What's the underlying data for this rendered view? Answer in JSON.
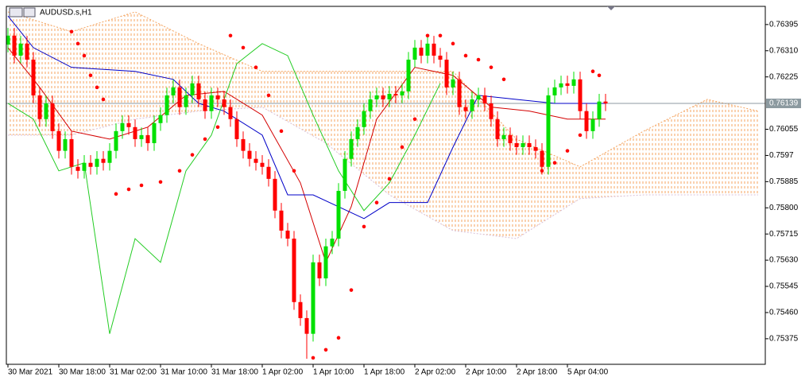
{
  "chart_data": {
    "type": "candlestick",
    "title": "AUDUSD.s,H1",
    "categories": [
      "30 Mar 2021",
      null,
      null,
      null,
      null,
      null,
      null,
      null,
      "30 Mar 18:00",
      null,
      null,
      null,
      null,
      null,
      null,
      null,
      "31 Mar 02:00",
      null,
      null,
      null,
      null,
      null,
      null,
      null,
      "31 Mar 10:00",
      null,
      null,
      null,
      null,
      null,
      null,
      null,
      "31 Mar 18:00",
      null,
      null,
      null,
      null,
      null,
      null,
      null,
      "1 Apr 02:00",
      null,
      null,
      null,
      null,
      null,
      null,
      null,
      "1 Apr 10:00",
      null,
      null,
      null,
      null,
      null,
      null,
      null,
      "1 Apr 18:00",
      null,
      null,
      null,
      null,
      null,
      null,
      null,
      "2 Apr 02:00",
      null,
      null,
      null,
      null,
      null,
      null,
      null,
      "2 Apr 10:00",
      null,
      null,
      null,
      null,
      null,
      null,
      null,
      "2 Apr 18:00",
      null,
      null,
      null,
      null,
      null,
      null,
      null,
      "5 Apr 04:00",
      null,
      null,
      null,
      null,
      null,
      null
    ],
    "open": [
      0.7633,
      0.76359,
      0.76294,
      0.76333,
      0.76281,
      0.76165,
      0.76088,
      0.76139,
      0.76049,
      0.75985,
      0.76023,
      0.75933,
      0.7592,
      0.75946,
      0.75933,
      0.75959,
      0.75946,
      0.75985,
      0.76049,
      0.76075,
      0.76062,
      0.76023,
      0.76036,
      0.7601,
      0.76075,
      0.76101,
      0.76165,
      0.76191,
      0.76127,
      0.76165,
      0.76204,
      0.76152,
      0.76114,
      0.76165,
      0.76152,
      0.76127,
      0.76088,
      0.76023,
      0.75985,
      0.75959,
      0.75946,
      0.75933,
      0.75894,
      0.75791,
      0.75726,
      0.757,
      0.75494,
      0.75442,
      0.75391,
      0.75623,
      0.75571,
      0.75675,
      0.757,
      0.75855,
      0.75959,
      0.76023,
      0.76062,
      0.76114,
      0.76152,
      0.76165,
      0.76152,
      0.7617,
      0.76165,
      0.76178,
      0.76281,
      0.7632,
      0.76294,
      0.76333,
      0.76294,
      0.76281,
      0.76191,
      0.76217,
      0.76127,
      0.76114,
      0.76152,
      0.76165,
      0.76139,
      0.76088,
      0.76023,
      0.76036,
      0.7601,
      0.75997,
      0.7601,
      0.75997,
      0.75985,
      0.75933,
      0.76165,
      0.76191,
      0.76204,
      0.76196,
      0.76217,
      0.76114,
      0.76049,
      0.76088,
      0.76145
    ],
    "close": [
      0.76359,
      0.76294,
      0.76333,
      0.76281,
      0.76165,
      0.76088,
      0.76139,
      0.76049,
      0.75985,
      0.76023,
      0.75933,
      0.7592,
      0.75946,
      0.75933,
      0.75959,
      0.75946,
      0.75985,
      0.76049,
      0.76075,
      0.76062,
      0.76023,
      0.76036,
      0.7601,
      0.76075,
      0.76101,
      0.76165,
      0.76191,
      0.76127,
      0.76165,
      0.76204,
      0.76152,
      0.76114,
      0.76165,
      0.76152,
      0.76127,
      0.76088,
      0.76023,
      0.75985,
      0.75959,
      0.75946,
      0.75933,
      0.75894,
      0.75791,
      0.75726,
      0.757,
      0.75494,
      0.75442,
      0.75391,
      0.75623,
      0.75571,
      0.75675,
      0.757,
      0.75855,
      0.75959,
      0.76023,
      0.76062,
      0.76114,
      0.76152,
      0.76165,
      0.76152,
      0.7617,
      0.76165,
      0.76178,
      0.76281,
      0.7632,
      0.76294,
      0.76333,
      0.76294,
      0.76281,
      0.76191,
      0.76217,
      0.76127,
      0.76114,
      0.76152,
      0.76165,
      0.76139,
      0.76088,
      0.76023,
      0.76036,
      0.7601,
      0.75997,
      0.7601,
      0.75997,
      0.75985,
      0.75933,
      0.76165,
      0.76191,
      0.76204,
      0.76196,
      0.76217,
      0.76114,
      0.76049,
      0.76088,
      0.76145,
      0.76139
    ],
    "high": [
      0.76384,
      0.76384,
      0.76358,
      0.76358,
      0.76306,
      0.7619,
      0.76164,
      0.76164,
      0.76074,
      0.76048,
      0.76048,
      0.75958,
      0.75971,
      0.75971,
      0.75984,
      0.75984,
      0.7601,
      0.76074,
      0.761,
      0.761,
      0.76087,
      0.76061,
      0.76061,
      0.761,
      0.76126,
      0.7619,
      0.76216,
      0.76216,
      0.7619,
      0.76229,
      0.76229,
      0.76177,
      0.7619,
      0.7619,
      0.76177,
      0.76152,
      0.76113,
      0.76048,
      0.7601,
      0.75984,
      0.75971,
      0.75958,
      0.75919,
      0.75816,
      0.75751,
      0.75725,
      0.75519,
      0.75467,
      0.75648,
      0.75648,
      0.757,
      0.75725,
      0.7588,
      0.75984,
      0.76048,
      0.76087,
      0.76139,
      0.76177,
      0.7619,
      0.7619,
      0.76195,
      0.76195,
      0.76203,
      0.76306,
      0.76345,
      0.76345,
      0.76358,
      0.76358,
      0.76319,
      0.76306,
      0.76242,
      0.76242,
      0.76152,
      0.76177,
      0.7619,
      0.7619,
      0.76164,
      0.76113,
      0.76061,
      0.76061,
      0.76035,
      0.76035,
      0.76035,
      0.76022,
      0.7601,
      0.7619,
      0.76216,
      0.76229,
      0.76229,
      0.76242,
      0.76242,
      0.76139,
      0.76113,
      0.7617,
      0.7617
    ],
    "low": [
      0.76305,
      0.76269,
      0.76269,
      0.76256,
      0.7614,
      0.76063,
      0.76063,
      0.76024,
      0.7596,
      0.7596,
      0.75908,
      0.75895,
      0.75895,
      0.75908,
      0.75908,
      0.75921,
      0.75921,
      0.7596,
      0.76024,
      0.76037,
      0.75998,
      0.75998,
      0.75985,
      0.75985,
      0.7605,
      0.76076,
      0.7614,
      0.76102,
      0.76102,
      0.7614,
      0.76127,
      0.76089,
      0.76089,
      0.76127,
      0.76102,
      0.76063,
      0.75998,
      0.7596,
      0.75934,
      0.75921,
      0.75908,
      0.75869,
      0.75766,
      0.75701,
      0.75675,
      0.75469,
      0.75417,
      0.7531,
      0.75366,
      0.75546,
      0.75546,
      0.7565,
      0.75675,
      0.7583,
      0.75934,
      0.75998,
      0.76037,
      0.76089,
      0.76127,
      0.76127,
      0.76127,
      0.7614,
      0.7614,
      0.76153,
      0.76256,
      0.76269,
      0.76269,
      0.76269,
      0.76256,
      0.76166,
      0.76166,
      0.76102,
      0.76089,
      0.76089,
      0.76127,
      0.76114,
      0.76063,
      0.75998,
      0.75998,
      0.75985,
      0.75972,
      0.75972,
      0.75972,
      0.7596,
      0.75908,
      0.75908,
      0.7614,
      0.76166,
      0.76171,
      0.76171,
      0.76089,
      0.76024,
      0.76024,
      0.76063,
      0.76114
    ],
    "up_color": "#00e000",
    "down_color": "#ff0000",
    "lines": [
      {
        "color": "#d40000",
        "x": [
          0,
          5,
          10,
          16,
          22,
          28,
          34,
          40,
          46,
          50,
          54,
          58,
          64,
          70,
          76,
          82,
          88,
          94
        ],
        "values": [
          0.7632,
          0.76191,
          0.76049,
          0.76023,
          0.76062,
          0.76165,
          0.76178,
          0.76101,
          0.75881,
          0.75623,
          0.75804,
          0.76088,
          0.76256,
          0.7623,
          0.76127,
          0.76114,
          0.76088,
          0.76088
        ]
      },
      {
        "color": "#0000c8",
        "x": [
          0,
          4,
          10,
          20,
          26,
          30,
          34,
          40,
          44,
          48,
          56,
          60,
          66,
          70,
          74,
          80,
          86,
          94
        ],
        "values": [
          0.76423,
          0.7632,
          0.76256,
          0.76243,
          0.76217,
          0.76139,
          0.76114,
          0.76036,
          0.75842,
          0.75842,
          0.75765,
          0.75817,
          0.75817,
          0.75997,
          0.76165,
          0.76152,
          0.76139,
          0.76139
        ]
      },
      {
        "color": "#22cc22",
        "x": [
          0,
          4,
          8,
          12,
          16,
          20,
          24,
          28,
          32,
          36,
          40,
          44,
          48,
          52,
          56,
          60,
          64,
          68
        ],
        "values": [
          0.76139,
          0.76088,
          0.7592,
          0.75946,
          0.75391,
          0.757,
          0.75623,
          0.7592,
          0.76036,
          0.76268,
          0.76333,
          0.76294,
          0.76101,
          0.7592,
          0.75791,
          0.75881,
          0.76036,
          0.76204
        ]
      }
    ],
    "sar": {
      "color": "#ff0000",
      "x": [
        10,
        11,
        12,
        13,
        14,
        15,
        17,
        19,
        21,
        24,
        27,
        29,
        31,
        33,
        35,
        37,
        39,
        41,
        43,
        45,
        48,
        50,
        52,
        54,
        56,
        58,
        60,
        62,
        64,
        66,
        68,
        70,
        72,
        74,
        76,
        78,
        84,
        86,
        88,
        90,
        92,
        93
      ],
      "values": [
        0.76372,
        0.76333,
        0.76294,
        0.7623,
        0.76191,
        0.76152,
        0.75845,
        0.7586,
        0.75873,
        0.75884,
        0.7592,
        0.75972,
        0.76023,
        0.76062,
        0.76359,
        0.7632,
        0.76256,
        0.76165,
        0.76049,
        0.7592,
        0.75313,
        0.75339,
        0.75378,
        0.75533,
        0.75739,
        0.75817,
        0.75894,
        0.75997,
        0.76088,
        0.76359,
        0.76359,
        0.76333,
        0.76294,
        0.76281,
        0.76256,
        0.76217,
        0.7592,
        0.75946,
        0.75985,
        0.76036,
        0.76243,
        0.7623
      ]
    },
    "cloud": {
      "color": "#f4a460",
      "x": [
        0,
        10,
        20,
        30,
        40,
        50,
        60,
        70,
        80,
        90,
        100,
        110,
        118
      ],
      "span_a": [
        0.76436,
        0.76372,
        0.76436,
        0.76333,
        0.76243,
        0.76243,
        0.76243,
        0.76243,
        0.76023,
        0.75933,
        0.76049,
        0.76152,
        0.76114
      ],
      "span_b": [
        0.76036,
        0.76036,
        0.76088,
        0.76114,
        0.76127,
        0.7601,
        0.75842,
        0.75726,
        0.757,
        0.7583,
        0.75842,
        0.75842,
        0.75842
      ]
    },
    "current_price": 0.76139,
    "xlim": [
      -0.25,
      119.125
    ],
    "ylim": [
      0.75292,
      0.76454
    ],
    "yticks": [
      0.76395,
      {
        "value": 0.7631,
        "label": "0.76310"
      },
      0.76225,
      0.76055,
      0.7597,
      0.75885,
      {
        "value": 0.758,
        "label": "0.75800"
      },
      0.75715,
      {
        "value": 0.7563,
        "label": "0.75630"
      },
      0.75545,
      {
        "value": 0.7546,
        "label": "0.75460"
      },
      0.75375
    ]
  }
}
